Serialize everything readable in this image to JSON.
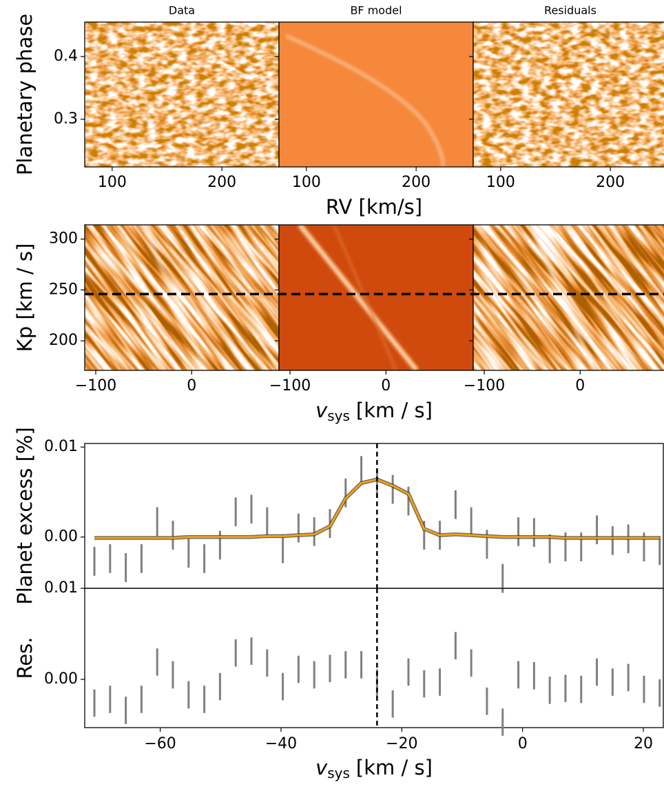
{
  "chart_data": [
    {
      "type": "heatmap",
      "panel_titles": [
        "Data",
        "BF model",
        "Residuals"
      ],
      "ylabel": "Planetary phase",
      "xlabel": "RV [km/s]",
      "xlim": [
        75,
        252
      ],
      "xticks": [
        100,
        200
      ],
      "ylim": [
        0.224,
        0.455
      ],
      "yticks": [
        0.3,
        0.4
      ]
    },
    {
      "type": "heatmap",
      "ylabel": "Kp [km / s]",
      "xlabel": {
        "symbol": "v",
        "subscript": "sys",
        "unit": "[km / s]"
      },
      "xlim": [
        -111.5,
        91
      ],
      "xticks": [
        {
          "value": -100,
          "label": "−100"
        },
        0
      ],
      "ylim": [
        171,
        314
      ],
      "yticks": [
        200,
        250,
        300
      ],
      "hline": 246,
      "hline_color": "#000000"
    },
    {
      "type": "errorbar",
      "ylabel": "Planet excess [%]",
      "xlim": [
        -72.5,
        23.3
      ],
      "ylim": [
        -0.0057,
        0.0104
      ],
      "yticks": [
        {
          "value": 0,
          "label": "0.00"
        },
        {
          "value": 0.01,
          "label": "0.01"
        }
      ],
      "vline": -24.1,
      "x": [
        -70.9,
        -68.3,
        -65.7,
        -63.1,
        -60.5,
        -57.9,
        -55.3,
        -52.7,
        -50.1,
        -47.5,
        -44.9,
        -42.3,
        -39.7,
        -37.1,
        -34.5,
        -31.9,
        -29.3,
        -26.7,
        -24.1,
        -21.5,
        -18.9,
        -16.3,
        -13.7,
        -11.1,
        -8.5,
        -5.9,
        -3.3,
        -0.7,
        1.9,
        4.5,
        7.1,
        9.7,
        12.3,
        14.9,
        17.5,
        20.1,
        22.7
      ],
      "series": [
        {
          "color": "#7f7f7f",
          "error": 0.0016,
          "values": [
            -0.0027,
            -0.0024,
            -0.0034,
            -0.0024,
            0.0017,
            0.0002,
            -0.0018,
            -0.0024,
            -0.0009,
            0.0028,
            0.0031,
            0.0017,
            -0.0013,
            0.001,
            0.0006,
            0.0015,
            0.0049,
            0.0074,
            0.006,
            0.0053,
            0.004,
            0.0002,
            0.0002,
            0.0036,
            0.0017,
            -0.0008,
            -0.0046,
            0.0006,
            0.0005,
            -0.0013,
            -0.0011,
            -0.0011,
            0.0008,
            -0.0004,
            -0.0002,
            -0.0011,
            -0.0015
          ]
        }
      ],
      "model": {
        "color": "#f5a00f",
        "values": [
          -0.0001,
          -0.0001,
          -0.0001,
          -0.0001,
          -0.0001,
          -0.0001,
          0,
          0,
          0,
          0,
          0,
          0.0001,
          0.0001,
          0.0002,
          0.0003,
          0.0012,
          0.0043,
          0.006,
          0.0064,
          0.0057,
          0.0048,
          0.0009,
          0.0002,
          0.0003,
          0.0002,
          0.0001,
          0,
          0,
          0,
          0,
          -0.0001,
          -0.0001,
          -0.0001,
          -0.0001,
          -0.0001,
          -0.0001,
          -0.0001
        ]
      }
    },
    {
      "type": "errorbar",
      "ylabel": "Res.",
      "xlabel": {
        "symbol": "v",
        "subscript": "sys",
        "unit": "[km / s]"
      },
      "xlim": [
        -72.5,
        23.3
      ],
      "xticks": [
        {
          "value": -60,
          "label": "−60"
        },
        {
          "value": -40,
          "label": "−40"
        },
        {
          "value": -20,
          "label": "−20"
        },
        0,
        20
      ],
      "ylim": [
        -0.0053,
        0.01
      ],
      "yticks": [
        {
          "value": 0,
          "label": "0.00"
        },
        {
          "value": 0.01,
          "label": "0.01"
        }
      ],
      "vline": -24.1,
      "x": [
        -70.9,
        -68.3,
        -65.7,
        -63.1,
        -60.5,
        -57.9,
        -55.3,
        -52.7,
        -50.1,
        -47.5,
        -44.9,
        -42.3,
        -39.7,
        -37.1,
        -34.5,
        -31.9,
        -29.3,
        -26.7,
        -24.1,
        -21.5,
        -18.9,
        -16.3,
        -13.7,
        -11.1,
        -8.5,
        -5.9,
        -3.3,
        -0.7,
        1.9,
        4.5,
        7.1,
        9.7,
        12.3,
        14.9,
        17.5,
        20.1,
        22.7
      ],
      "series": [
        {
          "color": "#7f7f7f",
          "error": 0.0015,
          "values": [
            -0.0026,
            -0.0022,
            -0.0034,
            -0.0022,
            0.0019,
            0.0005,
            -0.0017,
            -0.0022,
            -0.0008,
            0.0029,
            0.0031,
            0.0018,
            -0.0008,
            0.0011,
            0.0005,
            0.0012,
            0.0016,
            0.0016,
            -0.0004,
            -0.0027,
            0.0008,
            -0.0005,
            -0.0003,
            0.0037,
            0.0018,
            -0.0024,
            -0.0047,
            0.0005,
            0.0004,
            -0.0012,
            -0.001,
            -0.0011,
            0.0008,
            -0.0003,
            0.0002,
            -0.0011,
            -0.0015
          ]
        }
      ]
    }
  ]
}
